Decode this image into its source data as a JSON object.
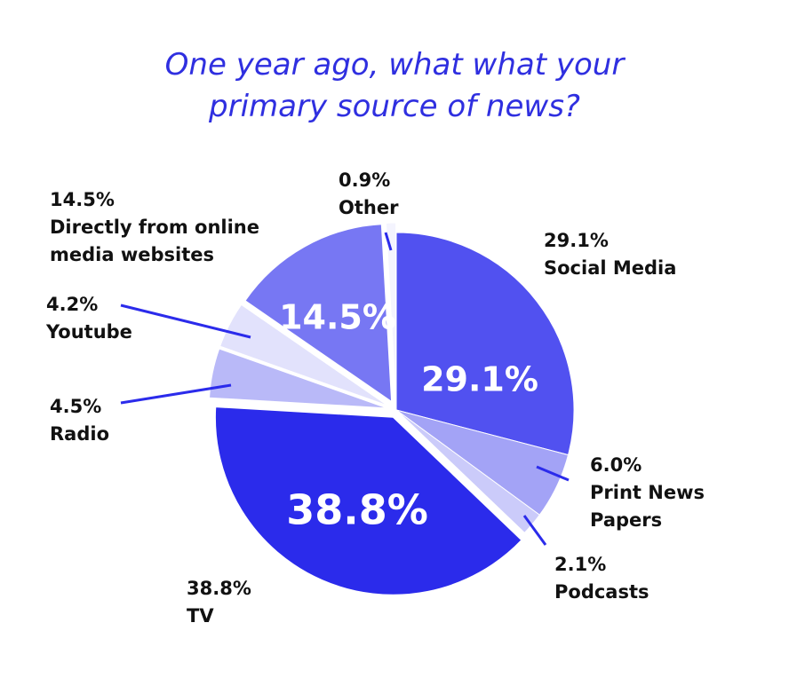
{
  "chart_data": {
    "type": "pie",
    "title_lines": [
      "One year ago, what what your",
      "primary source of news?"
    ],
    "slices": [
      {
        "pct_label": "29.1%",
        "name_lines": [
          "Social Media"
        ],
        "value": 29.1,
        "color": "#5151f0",
        "inner_label": "29.1%"
      },
      {
        "pct_label": "6.0%",
        "name_lines": [
          "Print News",
          "Papers"
        ],
        "value": 6.0,
        "color": "#a3a3f6",
        "inner_label": ""
      },
      {
        "pct_label": "2.1%",
        "name_lines": [
          "Podcasts"
        ],
        "value": 2.1,
        "color": "#cbcbfa",
        "inner_label": ""
      },
      {
        "pct_label": "38.8%",
        "name_lines": [
          "TV"
        ],
        "value": 38.8,
        "color": "#2b2beb",
        "inner_label": "38.8%"
      },
      {
        "pct_label": "4.5%",
        "name_lines": [
          "Radio"
        ],
        "value": 4.5,
        "color": "#b9b9f8",
        "inner_label": ""
      },
      {
        "pct_label": "4.2%",
        "name_lines": [
          "Youtube"
        ],
        "value": 4.2,
        "color": "#e2e2fc",
        "inner_label": ""
      },
      {
        "pct_label": "14.5%",
        "name_lines": [
          "Directly from online",
          "media websites"
        ],
        "value": 14.5,
        "color": "#7777f3",
        "inner_label": "14.5%"
      },
      {
        "pct_label": "0.9%",
        "name_lines": [
          "Other"
        ],
        "value": 0.9,
        "color": "#f4f4fe",
        "inner_label": ""
      }
    ],
    "leader_color": "#2b2beb"
  }
}
